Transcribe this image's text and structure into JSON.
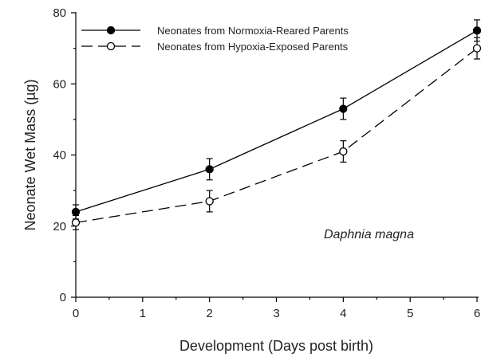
{
  "chart_data": {
    "type": "line",
    "xlabel": "Development (Days post birth)",
    "ylabel": "Neonate Wet Mass (µg)",
    "xlim": [
      0,
      6
    ],
    "ylim": [
      0,
      80
    ],
    "x_ticks": [
      "0",
      "1",
      "2",
      "3",
      "4",
      "5",
      "6"
    ],
    "y_ticks": [
      "0",
      "20",
      "40",
      "60",
      "80"
    ],
    "legend_position": "top-left",
    "grid": false,
    "annotation": "Daphnia magna",
    "series": [
      {
        "name": "Neonates from Normoxia-Reared Parents",
        "marker": "filled-circle",
        "line_style": "solid",
        "color": "#000000",
        "points": [
          {
            "x": 0,
            "y": 24,
            "err": 2
          },
          {
            "x": 2,
            "y": 36,
            "err": 3
          },
          {
            "x": 4,
            "y": 53,
            "err": 3
          },
          {
            "x": 6,
            "y": 75,
            "err": 3
          }
        ]
      },
      {
        "name": "Neonates from Hypoxia-Exposed Parents",
        "marker": "open-circle",
        "line_style": "dashed",
        "color": "#000000",
        "points": [
          {
            "x": 0,
            "y": 21,
            "err": 2
          },
          {
            "x": 2,
            "y": 27,
            "err": 3
          },
          {
            "x": 4,
            "y": 41,
            "err": 3
          },
          {
            "x": 6,
            "y": 70,
            "err": 3
          }
        ]
      }
    ]
  }
}
